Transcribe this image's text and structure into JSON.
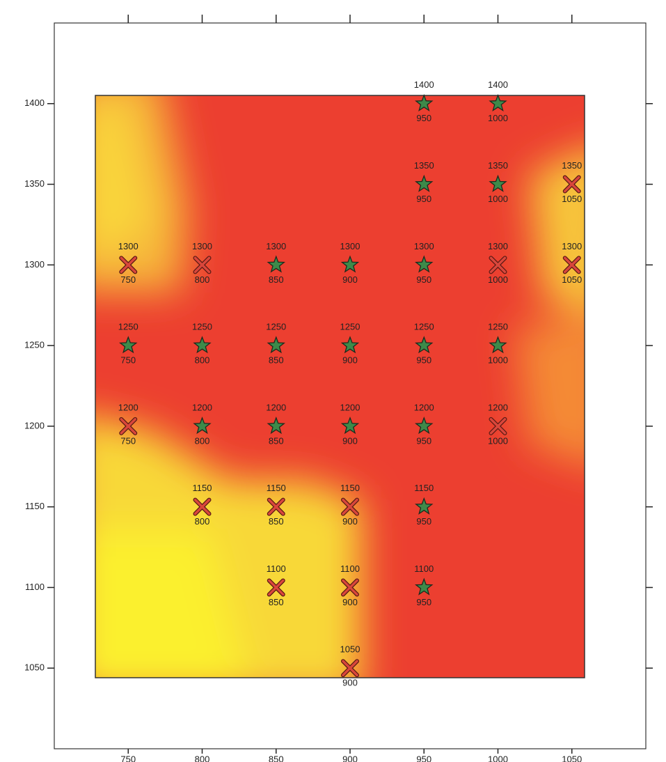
{
  "chart_data": {
    "type": "scatter",
    "xlim": [
      700,
      1100
    ],
    "ylim": [
      1000,
      1450
    ],
    "xticks": [
      750,
      800,
      850,
      900,
      950,
      1000,
      1050
    ],
    "yticks": [
      1050,
      1100,
      1150,
      1200,
      1250,
      1300,
      1350,
      1400
    ],
    "series": [
      {
        "marker": "star",
        "color": "#3d8a4a",
        "x": [
          950,
          1000,
          950,
          1000,
          850,
          900,
          950,
          750,
          800,
          850,
          900,
          950,
          1000,
          800,
          850,
          900,
          950,
          950,
          950
        ],
        "y": [
          1400,
          1400,
          1350,
          1350,
          1300,
          1300,
          1300,
          1250,
          1250,
          1250,
          1250,
          1250,
          1250,
          1200,
          1200,
          1200,
          1200,
          1150,
          1100
        ]
      },
      {
        "marker": "cross",
        "color": "#d9473c",
        "x": [
          1050,
          750,
          800,
          1000,
          1050,
          750,
          1000,
          800,
          850,
          900,
          850,
          900,
          900
        ],
        "y": [
          1350,
          1300,
          1300,
          1300,
          1300,
          1200,
          1200,
          1150,
          1150,
          1150,
          1100,
          1100,
          1050
        ]
      }
    ]
  }
}
